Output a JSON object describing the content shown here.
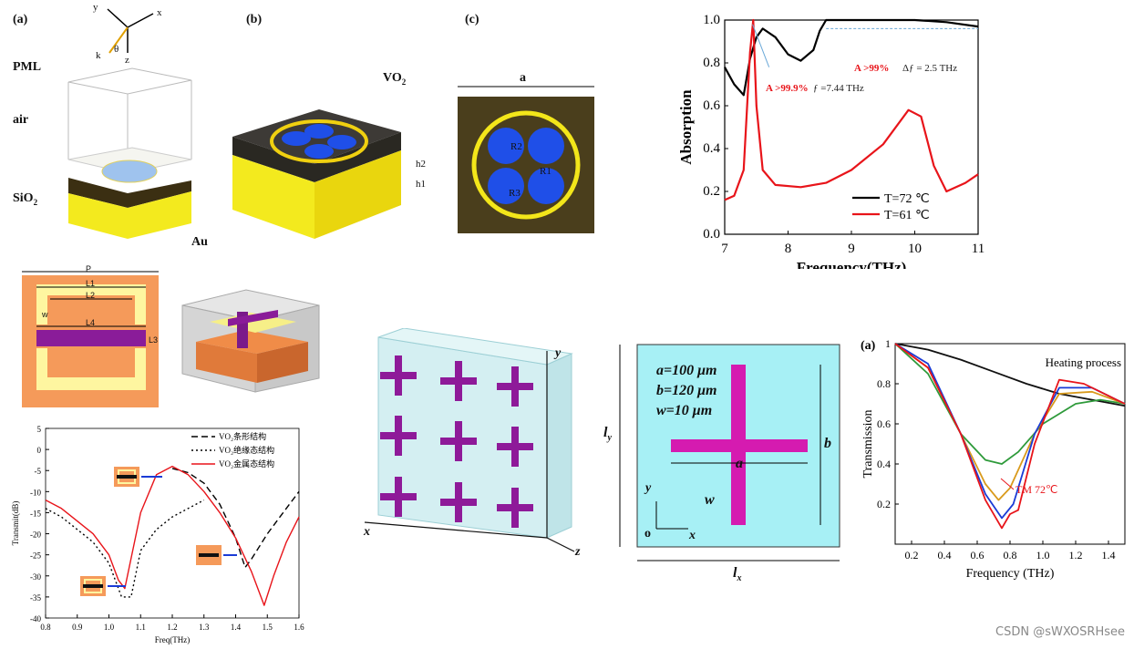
{
  "panel_top_left": {
    "label_a": "(a)",
    "label_b": "(b)",
    "label_c": "(c)",
    "axis_x": "x",
    "axis_y": "y",
    "axis_z": "z",
    "k": "k",
    "theta": "θ",
    "pml": "PML",
    "air": "air",
    "sio2": "SiO",
    "sio2_sub": "2",
    "au": "Au",
    "vo2": "VO",
    "vo2_sub": "2",
    "h2": "h2",
    "h1": "h1",
    "a": "a",
    "r1": "R1",
    "r2": "R2",
    "r3": "R3"
  },
  "absorption_chart": {
    "chart_data": {
      "type": "line",
      "title": "",
      "xlabel": "Frequency(THz)",
      "ylabel": "Absorption",
      "xlim": [
        7,
        11
      ],
      "ylim": [
        0.0,
        1.0
      ],
      "xticks": [
        "7",
        "8",
        "9",
        "10",
        "11"
      ],
      "yticks": [
        "0.0",
        "0.2",
        "0.4",
        "0.6",
        "0.8",
        "1.0"
      ],
      "series": [
        {
          "name": "T=72 ℃",
          "color": "#000000",
          "x": [
            7.0,
            7.15,
            7.3,
            7.4,
            7.5,
            7.6,
            7.8,
            8.0,
            8.2,
            8.4,
            8.5,
            8.6,
            9.0,
            9.5,
            10.0,
            10.5,
            11.0
          ],
          "y": [
            0.78,
            0.7,
            0.65,
            0.82,
            0.92,
            0.96,
            0.92,
            0.84,
            0.81,
            0.86,
            0.95,
            1.0,
            1.0,
            1.0,
            1.0,
            0.99,
            0.97
          ]
        },
        {
          "name": "T=61 ℃",
          "color": "#e8141a",
          "x": [
            7.0,
            7.15,
            7.3,
            7.4,
            7.45,
            7.5,
            7.6,
            7.8,
            8.2,
            8.6,
            9.0,
            9.5,
            9.9,
            10.1,
            10.3,
            10.5,
            10.8,
            11.0
          ],
          "y": [
            0.16,
            0.18,
            0.3,
            0.85,
            1.0,
            0.6,
            0.3,
            0.23,
            0.22,
            0.24,
            0.3,
            0.42,
            0.58,
            0.55,
            0.32,
            0.2,
            0.24,
            0.28
          ]
        }
      ],
      "annotations": [
        {
          "text": "A >99.9%",
          "color": "#e8141a"
        },
        {
          "text": "ƒ =7.44 THz",
          "color": "#222"
        },
        {
          "text": "A >99%",
          "color": "#e8141a"
        },
        {
          "text": "Δƒ = 2.5 THz",
          "color": "#222"
        }
      ]
    }
  },
  "srr_panel": {
    "p": "P",
    "l1": "L1",
    "l2": "L2",
    "w": "w",
    "l4": "L4",
    "l3": "L3"
  },
  "transmit_chart": {
    "chart_data": {
      "type": "line",
      "xlabel": "Freq(THz)",
      "ylabel": "Transmit(dB)",
      "xlim": [
        0.8,
        1.6
      ],
      "ylim": [
        -40,
        5
      ],
      "xticks": [
        "0.8",
        "0.9",
        "1.0",
        "1.1",
        "1.2",
        "1.3",
        "1.4",
        "1.5",
        "1.6"
      ],
      "yticks": [
        "5",
        "0",
        "-5",
        "-10",
        "-15",
        "-20",
        "-25",
        "-30",
        "-35",
        "-40"
      ],
      "series": [
        {
          "name": "VO₂条形结构",
          "style": "dashed",
          "color": "#000000",
          "x": [
            1.2,
            1.25,
            1.3,
            1.35,
            1.4,
            1.43,
            1.45,
            1.5,
            1.55,
            1.6
          ],
          "y": [
            -4.5,
            -5.5,
            -8,
            -13,
            -21,
            -28,
            -26,
            -20,
            -15,
            -10
          ]
        },
        {
          "name": "VO₂绝缘态结构",
          "style": "dotted",
          "color": "#000000",
          "x": [
            0.8,
            0.85,
            0.9,
            0.95,
            1.0,
            1.04,
            1.07,
            1.1,
            1.15,
            1.2,
            1.25,
            1.3
          ],
          "y": [
            -14,
            -16,
            -19,
            -22,
            -27,
            -35,
            -35,
            -24,
            -19,
            -16,
            -14,
            -12
          ]
        },
        {
          "name": "VO₂金属态结构",
          "style": "solid",
          "color": "#e8141a",
          "x": [
            0.8,
            0.85,
            0.9,
            0.95,
            1.0,
            1.03,
            1.05,
            1.1,
            1.15,
            1.2,
            1.25,
            1.3,
            1.35,
            1.4,
            1.45,
            1.49,
            1.52,
            1.56,
            1.6
          ],
          "y": [
            -12,
            -14,
            -17,
            -20,
            -25,
            -31,
            -33,
            -15,
            -6,
            -4,
            -6,
            -10,
            -15,
            -21,
            -29,
            -37,
            -30,
            -22,
            -16
          ]
        }
      ]
    }
  },
  "cross_array": {
    "x": "x",
    "y": "y",
    "z": "z"
  },
  "cross_unit": {
    "a_val": "a=100 μm",
    "b_val": "b=120 μm",
    "w_val": "w=10 μm",
    "a": "a",
    "b": "b",
    "w": "w",
    "lx": "l",
    "lx_sub": "x",
    "ly": "l",
    "ly_sub": "y",
    "ax_x": "x",
    "ax_y": "y",
    "origin": "o"
  },
  "transmission_chart": {
    "chart_data": {
      "type": "line",
      "label": "(a)",
      "xlabel": "Frequency (THz)",
      "ylabel": "Transmission",
      "xlim": [
        0.1,
        1.5
      ],
      "ylim": [
        0.0,
        1.0
      ],
      "xticks": [
        "0.2",
        "0.4",
        "0.6",
        "0.8",
        "1.0",
        "1.2",
        "1.4"
      ],
      "yticks": [
        "0.2",
        "0.4",
        "0.6",
        "0.8",
        "1"
      ],
      "legend_text": "Heating process",
      "annotation": "TM 72℃",
      "series": [
        {
          "name": "black",
          "color": "#111111",
          "x": [
            0.1,
            0.3,
            0.5,
            0.7,
            0.9,
            1.1,
            1.3,
            1.5
          ],
          "y": [
            1.0,
            0.97,
            0.92,
            0.86,
            0.8,
            0.75,
            0.72,
            0.69
          ]
        },
        {
          "name": "green",
          "color": "#2e9a3a",
          "x": [
            0.1,
            0.3,
            0.5,
            0.65,
            0.75,
            0.85,
            1.0,
            1.2,
            1.35,
            1.5
          ],
          "y": [
            1.0,
            0.85,
            0.55,
            0.42,
            0.4,
            0.46,
            0.6,
            0.7,
            0.72,
            0.7
          ]
        },
        {
          "name": "orange",
          "color": "#d99a1c",
          "x": [
            0.1,
            0.3,
            0.5,
            0.65,
            0.73,
            0.8,
            0.95,
            1.1,
            1.3,
            1.5
          ],
          "y": [
            1.0,
            0.88,
            0.55,
            0.3,
            0.22,
            0.28,
            0.55,
            0.75,
            0.76,
            0.7
          ]
        },
        {
          "name": "blue",
          "color": "#1a3bd6",
          "x": [
            0.1,
            0.3,
            0.5,
            0.65,
            0.75,
            0.82,
            0.95,
            1.1,
            1.3,
            1.5
          ],
          "y": [
            1.0,
            0.9,
            0.55,
            0.25,
            0.13,
            0.2,
            0.55,
            0.78,
            0.78,
            0.7
          ]
        },
        {
          "name": "red",
          "color": "#e8141a",
          "x": [
            0.1,
            0.3,
            0.5,
            0.65,
            0.75,
            0.8,
            0.85,
            0.95,
            1.1,
            1.25,
            1.4,
            1.5
          ],
          "y": [
            1.0,
            0.88,
            0.55,
            0.22,
            0.08,
            0.15,
            0.17,
            0.5,
            0.82,
            0.8,
            0.74,
            0.7
          ]
        }
      ]
    }
  },
  "watermark": "CSDN @sWXOSRHsee"
}
